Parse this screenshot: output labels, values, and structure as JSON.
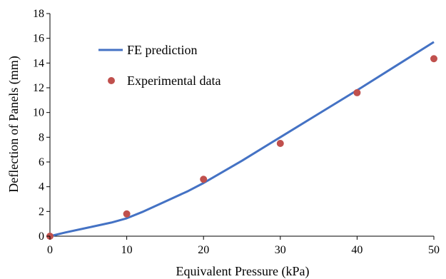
{
  "chart_data": {
    "type": "line",
    "xlabel": "Equivalent Pressure (kPa)",
    "ylabel": "Deflection of Panels (mm)",
    "xlim": [
      0,
      50
    ],
    "ylim": [
      0,
      18
    ],
    "x_ticks": [
      0,
      10,
      20,
      30,
      40,
      50
    ],
    "y_ticks": [
      0,
      2,
      4,
      6,
      8,
      10,
      12,
      14,
      16,
      18
    ],
    "grid": false,
    "legend_position": "top-left",
    "series": [
      {
        "name": "FE prediction",
        "style": "line",
        "color": "#4472C4",
        "x": [
          0,
          2,
          5,
          8,
          10,
          12,
          15,
          18,
          20,
          25,
          30,
          35,
          40,
          45,
          50
        ],
        "y": [
          0,
          0.3,
          0.7,
          1.1,
          1.45,
          1.95,
          2.8,
          3.65,
          4.3,
          6.1,
          8.0,
          9.9,
          11.8,
          13.75,
          15.7
        ]
      },
      {
        "name": "Experimental data",
        "style": "scatter",
        "color": "#C0504D",
        "x": [
          0,
          10,
          20,
          30,
          40,
          50
        ],
        "y": [
          0,
          1.8,
          4.6,
          7.5,
          11.6,
          14.35
        ]
      }
    ]
  }
}
